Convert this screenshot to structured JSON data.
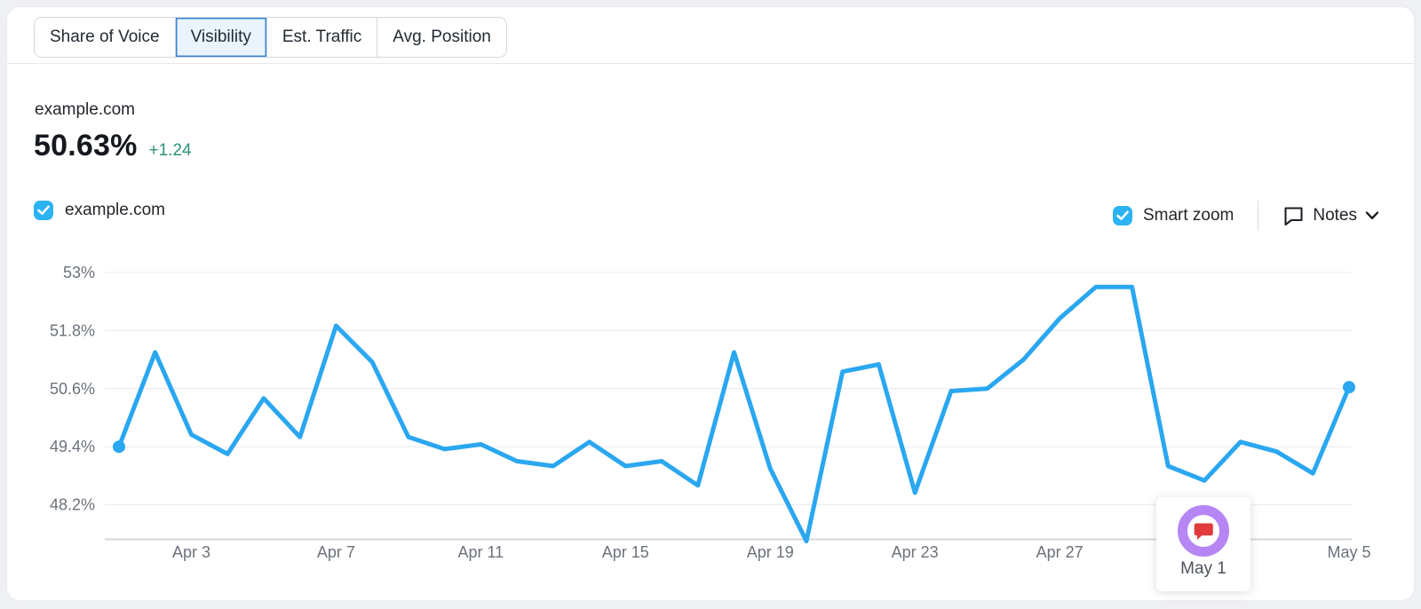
{
  "tabs": [
    {
      "label": "Share of Voice",
      "selected": false
    },
    {
      "label": "Visibility",
      "selected": true
    },
    {
      "label": "Est. Traffic",
      "selected": false
    },
    {
      "label": "Avg. Position",
      "selected": false
    }
  ],
  "header": {
    "domain": "example.com",
    "value": "50.63%",
    "delta": "+1.24"
  },
  "legend": {
    "label": "example.com",
    "checked": true
  },
  "controls": {
    "smart_zoom": {
      "label": "Smart zoom",
      "checked": true
    },
    "notes": {
      "label": "Notes"
    }
  },
  "note_marker": {
    "date_label": "May 1"
  },
  "colors": {
    "accent_blue": "#2bb3f3",
    "line_blue": "#2aa7f0",
    "delta_green": "#2e9379",
    "note_ring_purple": "#b686f4",
    "note_icon_red": "#e23b3d",
    "selected_tab_bg": "#e9f4fd",
    "selected_tab_border": "#3a86d2",
    "grid_gray": "#e9eaed"
  },
  "chart_data": {
    "type": "line",
    "title": "example.com Visibility trend",
    "x": [
      "Apr 1",
      "Apr 2",
      "Apr 3",
      "Apr 4",
      "Apr 5",
      "Apr 6",
      "Apr 7",
      "Apr 8",
      "Apr 9",
      "Apr 10",
      "Apr 11",
      "Apr 12",
      "Apr 13",
      "Apr 14",
      "Apr 15",
      "Apr 16",
      "Apr 17",
      "Apr 18",
      "Apr 19",
      "Apr 20",
      "Apr 21",
      "Apr 22",
      "Apr 23",
      "Apr 24",
      "Apr 25",
      "Apr 26",
      "Apr 27",
      "Apr 28",
      "Apr 29",
      "Apr 30",
      "May 1",
      "May 2",
      "May 3",
      "May 4",
      "May 5"
    ],
    "series": [
      {
        "name": "example.com",
        "values": [
          49.4,
          51.35,
          49.65,
          49.25,
          50.4,
          49.6,
          51.9,
          51.15,
          49.6,
          49.35,
          49.45,
          49.1,
          49.0,
          49.5,
          49.0,
          49.1,
          48.6,
          51.35,
          48.95,
          47.45,
          50.95,
          51.1,
          48.45,
          50.55,
          50.6,
          51.2,
          52.05,
          52.7,
          52.7,
          49.0,
          48.7,
          49.5,
          49.3,
          48.85,
          50.63
        ]
      }
    ],
    "y_ticks": {
      "labels": [
        "53%",
        "51.8%",
        "50.6%",
        "49.4%",
        "48.2%"
      ],
      "values": [
        53,
        51.8,
        50.6,
        49.4,
        48.2
      ]
    },
    "x_tick_labels": [
      {
        "label": "Apr 3",
        "index": 2
      },
      {
        "label": "Apr 7",
        "index": 6
      },
      {
        "label": "Apr 11",
        "index": 10
      },
      {
        "label": "Apr 15",
        "index": 14
      },
      {
        "label": "Apr 19",
        "index": 18
      },
      {
        "label": "Apr 23",
        "index": 22
      },
      {
        "label": "Apr 27",
        "index": 26
      },
      {
        "label": "May 1",
        "index": 30,
        "note": true
      },
      {
        "label": "May 5",
        "index": 34
      }
    ],
    "ylim": [
      47.49,
      53.35
    ],
    "grid": true,
    "markers": "endpoints",
    "legend_position": "top-left"
  }
}
